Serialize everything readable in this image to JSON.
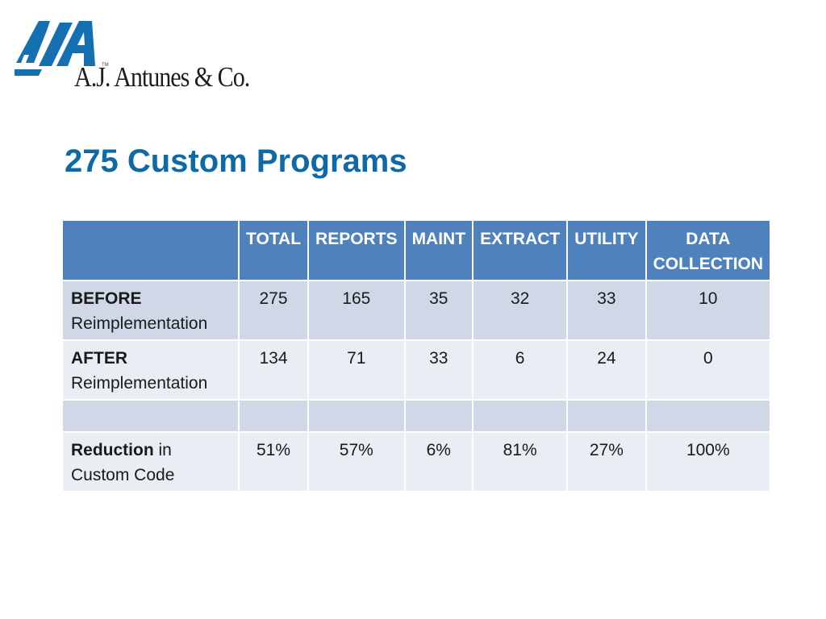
{
  "logo": {
    "icon": "aja-logo-mark",
    "text": "A.J. Antunes & Co.",
    "tm": "TM",
    "colors": {
      "mark": "#1470b0",
      "text": "#1d1d1d"
    }
  },
  "title": "275 Custom Programs",
  "table": {
    "columns": [
      "",
      "TOTAL",
      "REPORTS",
      "MAINT",
      "EXTRACT",
      "UTILITY",
      "DATA COLLECTION"
    ],
    "rows": [
      {
        "label_bold": "BEFORE",
        "label_rest": "Reimplementation",
        "values": [
          "275",
          "165",
          "35",
          "32",
          "33",
          "10"
        ]
      },
      {
        "label_bold": "AFTER",
        "label_rest": "Reimplementation",
        "values": [
          "134",
          "71",
          "33",
          "6",
          "24",
          "0"
        ]
      },
      {
        "label_bold": "",
        "label_rest": "",
        "values": [
          "",
          "",
          "",
          "",
          "",
          ""
        ]
      },
      {
        "label_bold": "Reduction",
        "label_rest": " in Custom Code",
        "values": [
          "51%",
          "57%",
          "6%",
          "81%",
          "27%",
          "100%"
        ]
      }
    ],
    "colors": {
      "header": "#4f81bd",
      "row_dark": "#d0d8e8",
      "row_light": "#e9edf4"
    }
  }
}
